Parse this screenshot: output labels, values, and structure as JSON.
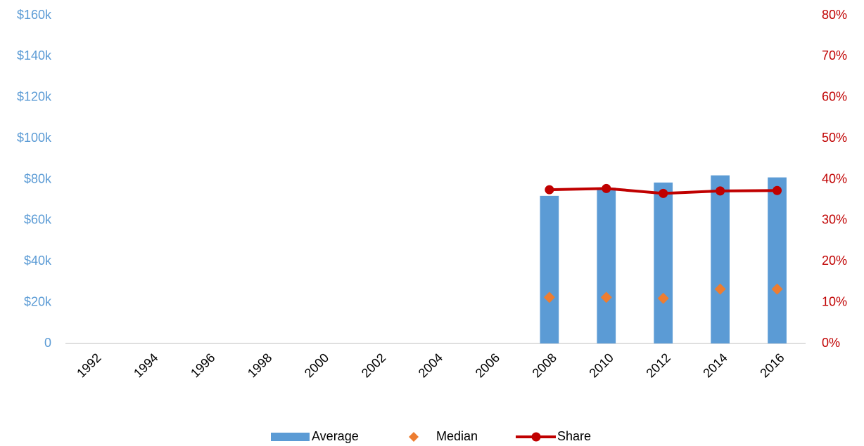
{
  "chart_data": {
    "type": "combo",
    "categories": [
      "1992",
      "1994",
      "1996",
      "1998",
      "2000",
      "2002",
      "2004",
      "2006",
      "2008",
      "2010",
      "2012",
      "2014",
      "2016"
    ],
    "series": [
      {
        "name": "Average",
        "type": "bar",
        "color": "#5b9bd5",
        "values": [
          null,
          null,
          null,
          null,
          null,
          null,
          null,
          null,
          72000,
          76000,
          78500,
          82000,
          81000
        ]
      },
      {
        "name": "Median",
        "type": "scatter",
        "color": "#ed7d31",
        "values": [
          null,
          null,
          null,
          null,
          null,
          null,
          null,
          null,
          22500,
          22500,
          22000,
          26500,
          26500
        ]
      },
      {
        "name": "Share",
        "type": "line",
        "axis": "y2",
        "color": "#c00000",
        "values": [
          null,
          null,
          null,
          null,
          null,
          null,
          null,
          null,
          37.5,
          37.8,
          36.6,
          37.2,
          37.3
        ]
      }
    ],
    "ylim": [
      0,
      160000
    ],
    "yticks": [
      0,
      {
        "value": 20000,
        "label": "$20k"
      },
      {
        "value": 40000,
        "label": "$40k"
      },
      {
        "value": 60000,
        "label": "$60k"
      },
      {
        "value": 80000,
        "label": "$80k"
      },
      {
        "value": 100000,
        "label": "$100k"
      },
      {
        "value": 120000,
        "label": "$120k"
      },
      {
        "value": 140000,
        "label": "$140k"
      },
      {
        "value": 160000,
        "label": "$160k"
      }
    ],
    "y_tick_color": "#5b9bd5",
    "y2lim": [
      0,
      80
    ],
    "y2ticks": [
      {
        "value": 0,
        "label": "0%"
      },
      {
        "value": 10,
        "label": "10%"
      },
      {
        "value": 20,
        "label": "20%"
      },
      {
        "value": 30,
        "label": "30%"
      },
      {
        "value": 40,
        "label": "40%"
      },
      {
        "value": 50,
        "label": "50%"
      },
      {
        "value": 60,
        "label": "60%"
      },
      {
        "value": 70,
        "label": "70%"
      },
      {
        "value": 80,
        "label": "80%"
      }
    ],
    "y2_tick_color": "#c00000",
    "grid": false,
    "legend": "bottom"
  }
}
